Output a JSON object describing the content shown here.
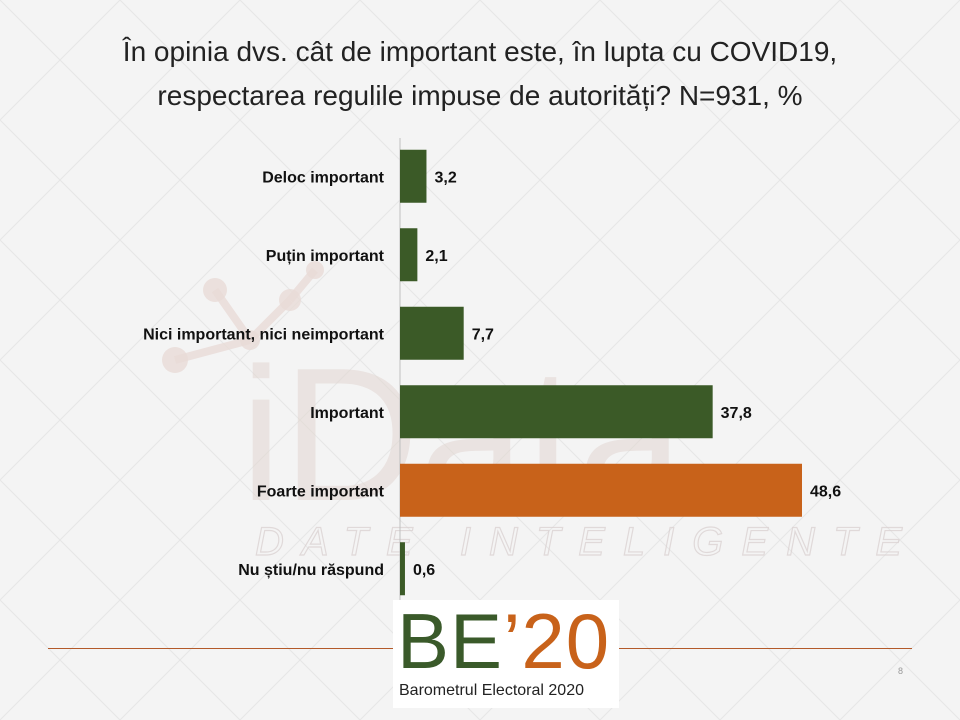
{
  "title": {
    "line1": "În opinia dvs. cât de important este, în lupta cu COVID19,",
    "line2": "respectarea regulile impuse de autorități? N=931, %"
  },
  "watermark": {
    "main": "iData",
    "sub": "DATE INTELIGENTE"
  },
  "logo": {
    "be": "BE",
    "num": "’20",
    "subtitle": "Barometrul Electoral 2020"
  },
  "page_number": "8",
  "colors": {
    "green": "#3b5a27",
    "orange": "#c8621a",
    "axis": "#bfbfbf"
  },
  "chart_data": {
    "type": "bar",
    "orientation": "horizontal",
    "categories": [
      "Deloc important",
      "Puțin important",
      "Nici important, nici neimportant",
      "Important",
      "Foarte important",
      "Nu știu/nu răspund"
    ],
    "values": [
      3.2,
      2.1,
      7.7,
      37.8,
      48.6,
      0.6
    ],
    "value_labels": [
      "3,2",
      "2,1",
      "7,7",
      "37,8",
      "48,6",
      "0,6"
    ],
    "bar_colors": [
      "green",
      "green",
      "green",
      "green",
      "orange",
      "green"
    ],
    "xlim": [
      0,
      50
    ],
    "grid": false,
    "legend": "none"
  }
}
